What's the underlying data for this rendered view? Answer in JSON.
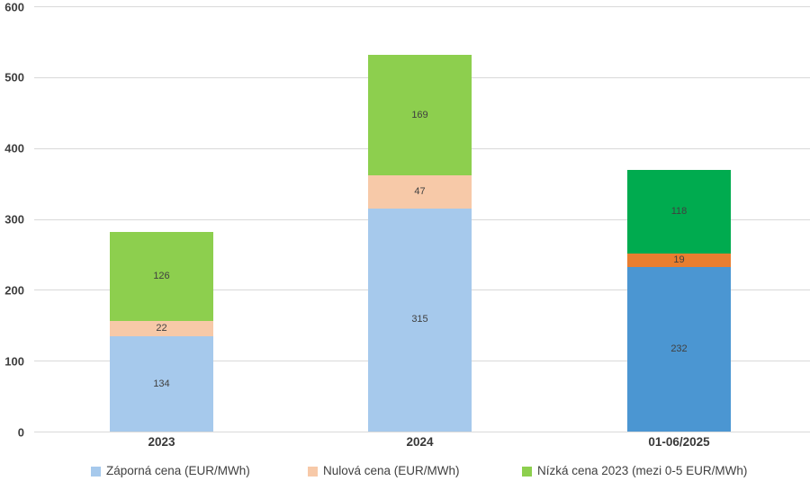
{
  "chart_data": {
    "type": "bar",
    "stacked": true,
    "title": "",
    "xlabel": "",
    "ylabel": "",
    "categories": [
      "2023",
      "2024",
      "01-06/2025"
    ],
    "series": [
      {
        "name": "Záporná cena (EUR/MWh)",
        "values": [
          134,
          315,
          232
        ],
        "colors": [
          "#A6C9EC",
          "#A6C9EC",
          "#4B96D2"
        ]
      },
      {
        "name": "Nulová cena (EUR/MWh)",
        "values": [
          22,
          47,
          19
        ],
        "colors": [
          "#F7C9A8",
          "#F7C9A8",
          "#E97E30"
        ]
      },
      {
        "name": "Nízká cena 2023 (mezi 0-5 EUR/MWh)",
        "values": [
          126,
          169,
          118
        ],
        "colors": [
          "#8DCF4E",
          "#8DCF4E",
          "#00AB4F"
        ]
      }
    ],
    "ylim": [
      0,
      600
    ],
    "yticks": [
      0,
      100,
      200,
      300,
      400,
      500,
      600
    ],
    "grid": true,
    "data_labels": true,
    "legend": {
      "position": "bottom",
      "entries": [
        {
          "label": "Záporná cena (EUR/MWh)",
          "color": "#A6C9EC"
        },
        {
          "label": "Nulová cena (EUR/MWh)",
          "color": "#F7C9A8"
        },
        {
          "label": "Nízká cena 2023 (mezi 0-5 EUR/MWh)",
          "color": "#8DCF4E"
        }
      ]
    },
    "colors": {
      "gridline": "#D9D9D9",
      "axis_text": "#3E3E3E",
      "data_label_text": "#404040"
    }
  }
}
